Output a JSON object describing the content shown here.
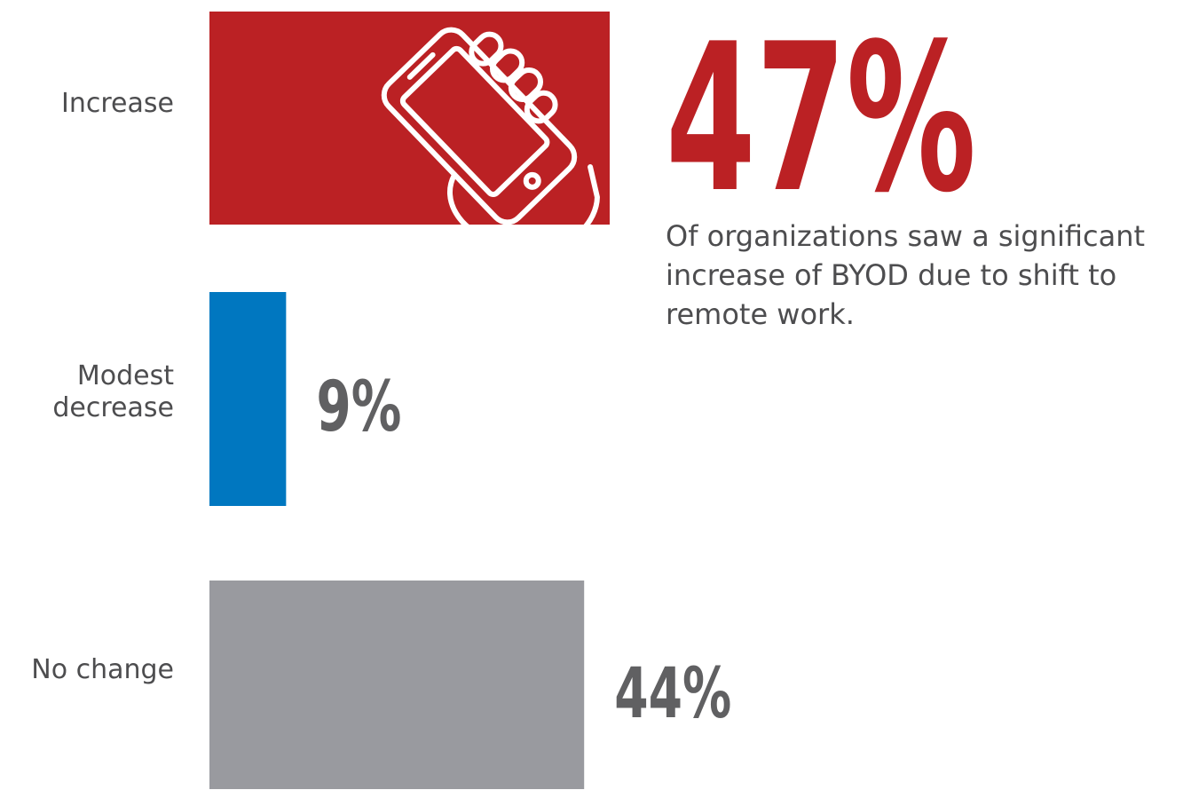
{
  "chart_data": {
    "type": "bar",
    "orientation": "horizontal",
    "categories": [
      "Increase",
      "Modest decrease",
      "No change"
    ],
    "values": [
      47,
      9,
      44
    ],
    "value_labels": [
      "47%",
      "9%",
      "44%"
    ],
    "unit": "%",
    "colors": [
      "#bb2124",
      "#0077c0",
      "#999a9f"
    ],
    "label_color": "#4d4d4f",
    "xlim": [
      0,
      100
    ],
    "grid": false,
    "legend": "none",
    "highlight": {
      "category": "Increase",
      "value_label": "47%",
      "icon": "hand-holding-phone-icon",
      "caption": "Of organizations saw a significant increase of BYOD due to shift to remote work."
    }
  }
}
